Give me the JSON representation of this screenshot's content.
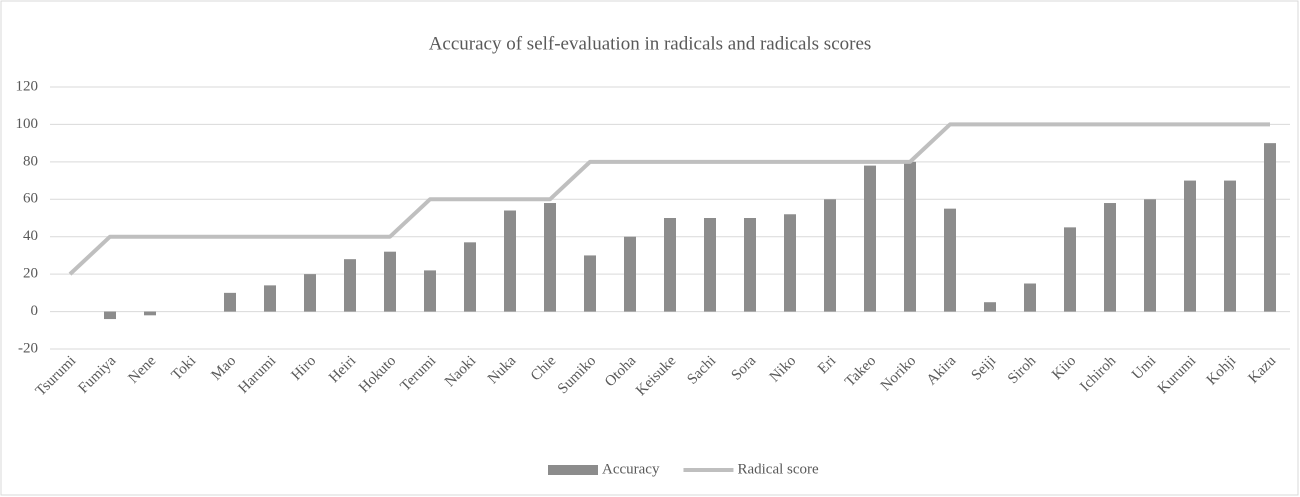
{
  "chart_data": {
    "type": "combo",
    "title": "Accuracy of self-evaluation in radicals and radicals scores",
    "categories": [
      "Tsurumi",
      "Fumiya",
      "Nene",
      "Toki",
      "Mao",
      "Harumi",
      "Hiro",
      "Heiri",
      "Hokuto",
      "Terumi",
      "Naoki",
      "Nuka",
      "Chie",
      "Sumiko",
      "Otoha",
      "Keisuke",
      "Sachi",
      "Sora",
      "Niko",
      "Eri",
      "Takeo",
      "Noriko",
      "Akira",
      "Seiji",
      "Siroh",
      "Kiio",
      "Ichiroh",
      "Umi",
      "Kurumi",
      "Kohji",
      "Kazu"
    ],
    "series": [
      {
        "name": "Accuracy",
        "type": "bar",
        "color": "#8c8c8c",
        "values": [
          0,
          -4,
          -2,
          0,
          10,
          14,
          20,
          28,
          32,
          22,
          37,
          54,
          58,
          30,
          40,
          50,
          50,
          50,
          52,
          60,
          78,
          80,
          55,
          5,
          15,
          45,
          58,
          60,
          70,
          70,
          90
        ]
      },
      {
        "name": "Radical score",
        "type": "line",
        "color": "#bfbfbf",
        "values": [
          20,
          40,
          40,
          40,
          40,
          40,
          40,
          40,
          40,
          60,
          60,
          60,
          60,
          80,
          80,
          80,
          80,
          80,
          80,
          80,
          80,
          80,
          100,
          100,
          100,
          100,
          100,
          100,
          100,
          100,
          100
        ]
      }
    ],
    "ylim": [
      -20,
      120
    ],
    "yticks": [
      -20,
      0,
      20,
      40,
      60,
      80,
      100,
      120
    ],
    "grid": true,
    "legend": "bottom"
  }
}
